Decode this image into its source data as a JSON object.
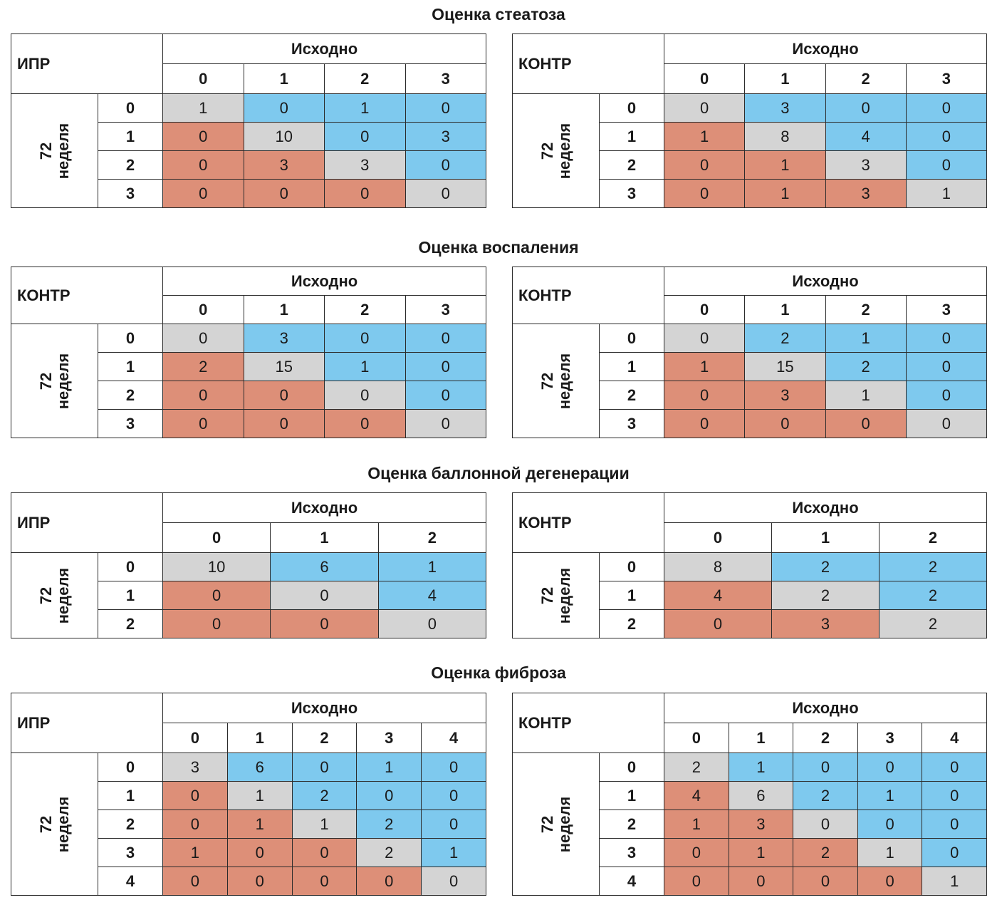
{
  "colors": {
    "diagonal": "#d4d4d4",
    "improved": "#7ec9ee",
    "worsened": "#dd8f78"
  },
  "titles": {
    "steatosis": "Оценка стеатоза",
    "inflammation": "Оценка воспаления",
    "ballooning": "Оценка баллонной дегенерации",
    "fibrosis": "Оценка фиброза"
  },
  "common": {
    "col_header": "Исходно",
    "row_label_1": "72",
    "row_label_2": "неделя"
  },
  "tables": {
    "t1": {
      "corner": "ИПР",
      "cols": [
        "0",
        "1",
        "2",
        "3"
      ],
      "rows": [
        "0",
        "1",
        "2",
        "3"
      ],
      "cells": [
        [
          "1",
          "0",
          "1",
          "0"
        ],
        [
          "0",
          "10",
          "0",
          "3"
        ],
        [
          "0",
          "3",
          "3",
          "0"
        ],
        [
          "0",
          "0",
          "0",
          "0"
        ]
      ]
    },
    "t2": {
      "corner": "КОНТР",
      "cols": [
        "0",
        "1",
        "2",
        "3"
      ],
      "rows": [
        "0",
        "1",
        "2",
        "3"
      ],
      "cells": [
        [
          "0",
          "3",
          "0",
          "0"
        ],
        [
          "1",
          "8",
          "4",
          "0"
        ],
        [
          "0",
          "1",
          "3",
          "0"
        ],
        [
          "0",
          "1",
          "3",
          "1"
        ]
      ]
    },
    "t3": {
      "corner": "КОНТР",
      "cols": [
        "0",
        "1",
        "2",
        "3"
      ],
      "rows": [
        "0",
        "1",
        "2",
        "3"
      ],
      "cells": [
        [
          "0",
          "3",
          "0",
          "0"
        ],
        [
          "2",
          "15",
          "1",
          "0"
        ],
        [
          "0",
          "0",
          "0",
          "0"
        ],
        [
          "0",
          "0",
          "0",
          "0"
        ]
      ]
    },
    "t4": {
      "corner": "КОНТР",
      "cols": [
        "0",
        "1",
        "2",
        "3"
      ],
      "rows": [
        "0",
        "1",
        "2",
        "3"
      ],
      "cells": [
        [
          "0",
          "2",
          "1",
          "0"
        ],
        [
          "1",
          "15",
          "2",
          "0"
        ],
        [
          "0",
          "3",
          "1",
          "0"
        ],
        [
          "0",
          "0",
          "0",
          "0"
        ]
      ]
    },
    "t5": {
      "corner": "ИПР",
      "cols": [
        "0",
        "1",
        "2"
      ],
      "rows": [
        "0",
        "1",
        "2"
      ],
      "cells": [
        [
          "10",
          "6",
          "1"
        ],
        [
          "0",
          "0",
          "4"
        ],
        [
          "0",
          "0",
          "0"
        ]
      ]
    },
    "t6": {
      "corner": "КОНТР",
      "cols": [
        "0",
        "1",
        "2"
      ],
      "rows": [
        "0",
        "1",
        "2"
      ],
      "cells": [
        [
          "8",
          "2",
          "2"
        ],
        [
          "4",
          "2",
          "2"
        ],
        [
          "0",
          "3",
          "2"
        ]
      ]
    },
    "t7": {
      "corner": "ИПР",
      "cols": [
        "0",
        "1",
        "2",
        "3",
        "4"
      ],
      "rows": [
        "0",
        "1",
        "2",
        "3",
        "4"
      ],
      "cells": [
        [
          "3",
          "6",
          "0",
          "1",
          "0"
        ],
        [
          "0",
          "1",
          "2",
          "0",
          "0"
        ],
        [
          "0",
          "1",
          "1",
          "2",
          "0"
        ],
        [
          "1",
          "0",
          "0",
          "2",
          "1"
        ],
        [
          "0",
          "0",
          "0",
          "0",
          "0"
        ]
      ]
    },
    "t8": {
      "corner": "КОНТР",
      "cols": [
        "0",
        "1",
        "2",
        "3",
        "4"
      ],
      "rows": [
        "0",
        "1",
        "2",
        "3",
        "4"
      ],
      "cells": [
        [
          "2",
          "1",
          "0",
          "0",
          "0"
        ],
        [
          "4",
          "6",
          "2",
          "1",
          "0"
        ],
        [
          "1",
          "3",
          "0",
          "0",
          "0"
        ],
        [
          "0",
          "1",
          "2",
          "1",
          "0"
        ],
        [
          "0",
          "0",
          "0",
          "0",
          "1"
        ]
      ]
    }
  }
}
